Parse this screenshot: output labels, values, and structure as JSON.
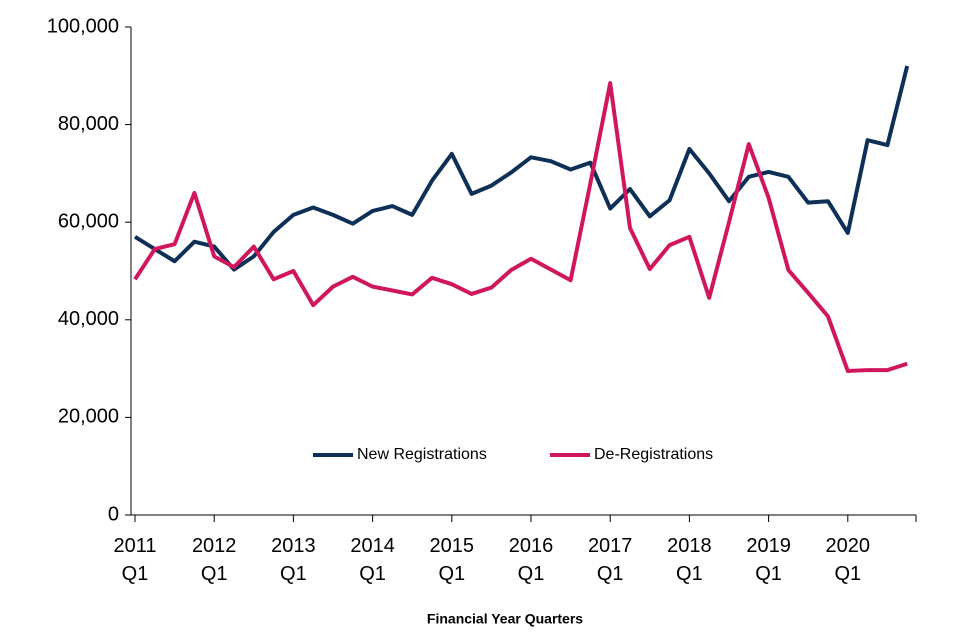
{
  "chart_data": {
    "type": "line",
    "x_label": "Financial Year Quarters",
    "categories": [
      "2011 Q1",
      null,
      null,
      null,
      "2012 Q1",
      null,
      null,
      null,
      "2013 Q1",
      null,
      null,
      null,
      "2014 Q1",
      null,
      null,
      null,
      "2015 Q1",
      null,
      null,
      null,
      "2016 Q1",
      null,
      null,
      null,
      "2017 Q1",
      null,
      null,
      null,
      "2018 Q1",
      null,
      null,
      null,
      "2019 Q1",
      null,
      null,
      null,
      "2020 Q1",
      null,
      null,
      null
    ],
    "series": [
      {
        "name": "New Registrations",
        "color": "#0e2f56",
        "values": [
          57000,
          54500,
          52000,
          56000,
          55000,
          50300,
          53000,
          58000,
          61500,
          63000,
          61500,
          59700,
          62300,
          63300,
          61500,
          68500,
          74000,
          65800,
          67500,
          70200,
          73300,
          72500,
          70800,
          72200,
          62800,
          66800,
          61200,
          64500,
          75000,
          70000,
          64300,
          69300,
          70300,
          69300,
          64000,
          64300,
          57800,
          76800,
          75800,
          92000
        ]
      },
      {
        "name": "De-Registrations",
        "color": "#d0175e",
        "values": [
          48300,
          54500,
          55500,
          66000,
          53000,
          50800,
          55000,
          48300,
          50000,
          43000,
          46800,
          48800,
          46800,
          46000,
          45200,
          48600,
          47300,
          45300,
          46600,
          50200,
          52500,
          50300,
          48100,
          68000,
          88500,
          58800,
          50400,
          55300,
          57000,
          44500,
          60000,
          76000,
          65000,
          50200,
          45500,
          40700,
          29500,
          29700,
          29700,
          31000
        ]
      }
    ],
    "ylim": [
      0,
      100000
    ],
    "yticks": [
      0,
      {
        "value": 20000,
        "label": "20,000"
      },
      {
        "value": 40000,
        "label": "40,000"
      },
      {
        "value": 60000,
        "label": "60,000"
      },
      {
        "value": 80000,
        "label": "80,000"
      },
      {
        "value": 100000,
        "label": "100,000"
      }
    ],
    "legend": "bottom-center"
  }
}
